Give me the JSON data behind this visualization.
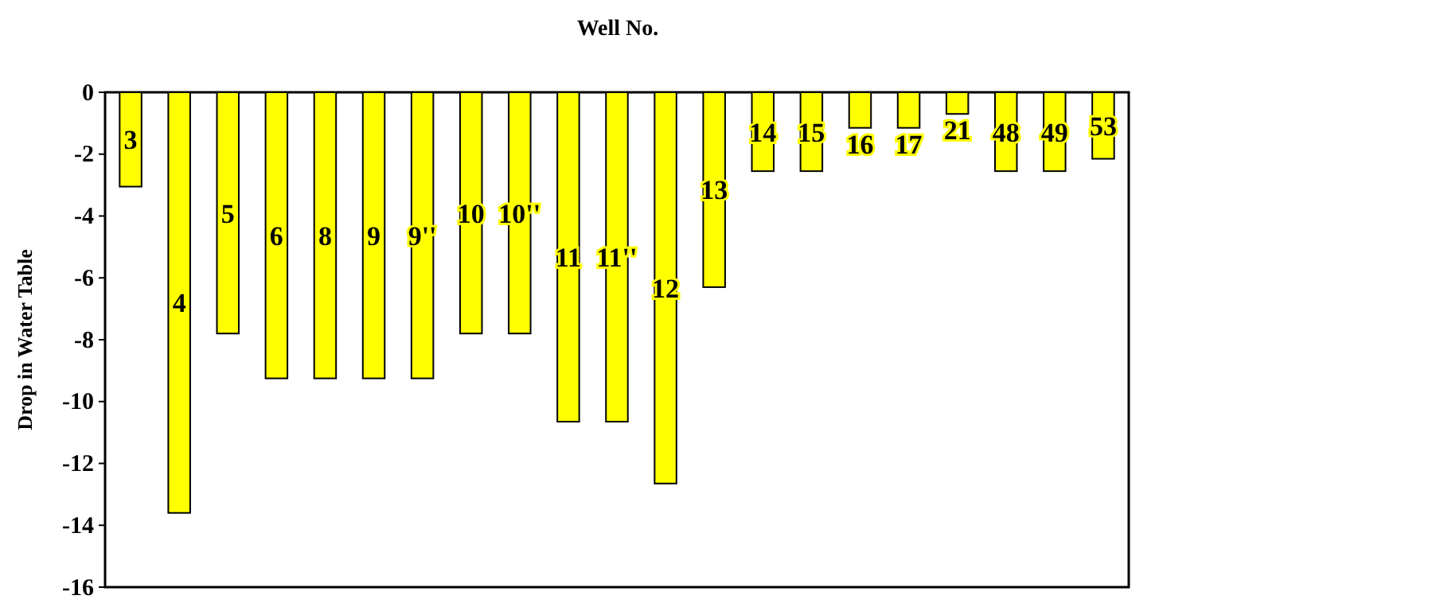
{
  "chart_data": {
    "type": "bar",
    "title": "Well No.",
    "ylabel": "Drop in Water Table",
    "categories": [
      "3",
      "4",
      "5",
      "6",
      "8",
      "9",
      "9''",
      "10",
      "10''",
      "11",
      "11''",
      "12",
      "13",
      "14",
      "15",
      "16",
      "17",
      "21",
      "48",
      "49",
      "53"
    ],
    "values": [
      -3.05,
      -13.6,
      -7.8,
      -9.25,
      -9.25,
      -9.25,
      -9.25,
      -7.8,
      -7.8,
      -10.65,
      -10.65,
      -12.65,
      -6.3,
      -2.55,
      -2.55,
      -1.15,
      -1.15,
      -0.7,
      -2.55,
      -2.55,
      -2.15
    ],
    "color": "#ffff00",
    "ylim": [
      -16,
      0
    ],
    "yticks": [
      -16,
      -14,
      -12,
      -10,
      -8,
      -6,
      -4,
      -2,
      0
    ],
    "grid": false
  }
}
